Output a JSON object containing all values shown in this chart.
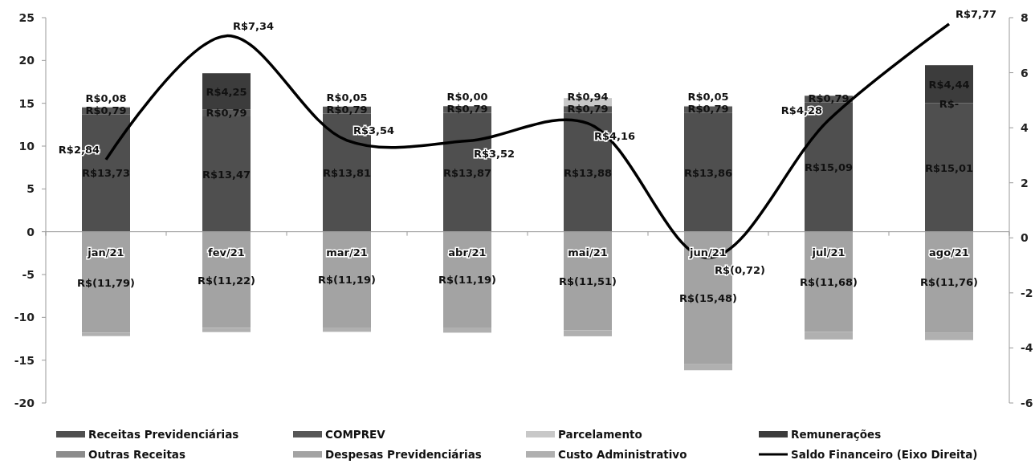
{
  "chart_data": {
    "type": "bar",
    "stacked": true,
    "categories": [
      "jan/21",
      "fev/21",
      "mar/21",
      "abr/21",
      "mai/21",
      "jun/21",
      "jul/21",
      "ago/21"
    ],
    "series": [
      {
        "name": "Receitas Previdenciárias",
        "color": "#4f4f4f",
        "values": [
          13.73,
          13.47,
          13.81,
          13.87,
          13.88,
          13.86,
          15.09,
          15.01
        ],
        "value_labels": [
          "R$13,73",
          "R$13,47",
          "R$13,81",
          "R$13,87",
          "R$13,88",
          "R$13,86",
          "R$15,09",
          "R$15,01"
        ]
      },
      {
        "name": "COMPREV",
        "color": "#575757",
        "values": [
          0.79,
          0.79,
          0.79,
          0.79,
          0.79,
          0.79,
          0.79,
          0
        ],
        "value_labels": [
          "R$0,79",
          "R$0,79",
          "R$0,79",
          "R$0,79",
          "R$0,79",
          "R$0,79",
          "R$0,79",
          "R$-"
        ]
      },
      {
        "name": "Parcelamento",
        "color": "#c8c8c8",
        "values": [
          0.08,
          null,
          0.05,
          0.0,
          0.94,
          0.05,
          null,
          null
        ],
        "value_labels": [
          "R$0,08",
          null,
          "R$0,05",
          "R$0,00",
          "R$0,94",
          "R$0,05",
          null,
          null
        ]
      },
      {
        "name": "Remunerações",
        "color": "#3c3c3c",
        "values": [
          null,
          4.25,
          null,
          null,
          null,
          null,
          null,
          4.44
        ],
        "value_labels": [
          null,
          "R$4,25",
          null,
          null,
          null,
          null,
          null,
          "R$4,44"
        ]
      },
      {
        "name": "Outras Receitas",
        "color": "#8c8c8c",
        "values": [
          null,
          null,
          null,
          null,
          null,
          null,
          null,
          null
        ]
      },
      {
        "name": "Despesas Previdenciárias",
        "color": "#a3a3a3",
        "values": [
          -11.79,
          -11.22,
          -11.19,
          -11.19,
          -11.51,
          -15.48,
          -11.68,
          -11.76
        ],
        "value_labels": [
          "R$(11,79)",
          "R$(11,22)",
          "R$(11,19)",
          "R$(11,19)",
          "R$(11,51)",
          "R$(15,48)",
          "R$(11,68)",
          "R$(11,76)"
        ]
      },
      {
        "name": "Custo Administrativo",
        "color": "#b0b0b0",
        "values": [
          -0.4,
          -0.5,
          -0.5,
          -0.6,
          -0.7,
          -0.7,
          -0.9,
          -0.9
        ]
      },
      {
        "name": "Saldo Financeiro (Eixo Direita)",
        "type": "line",
        "axis": "y2",
        "color": "#000000",
        "values": [
          2.84,
          7.34,
          3.54,
          3.52,
          4.16,
          -0.72,
          4.28,
          7.77
        ],
        "value_labels": [
          "R$2,84",
          "R$7,34",
          "R$3,54",
          "R$3,52",
          "R$4,16",
          "R$(0,72)",
          "R$4,28",
          "R$7,77"
        ]
      }
    ],
    "ylim": [
      -20,
      25
    ],
    "yticks": [
      -20,
      -15,
      -10,
      -5,
      0,
      5,
      10,
      15,
      20,
      25
    ],
    "y2lim": [
      -6,
      8
    ],
    "y2ticks": [
      -6,
      -4,
      -2,
      0,
      2,
      4,
      6,
      8
    ],
    "legend": "bottom"
  }
}
